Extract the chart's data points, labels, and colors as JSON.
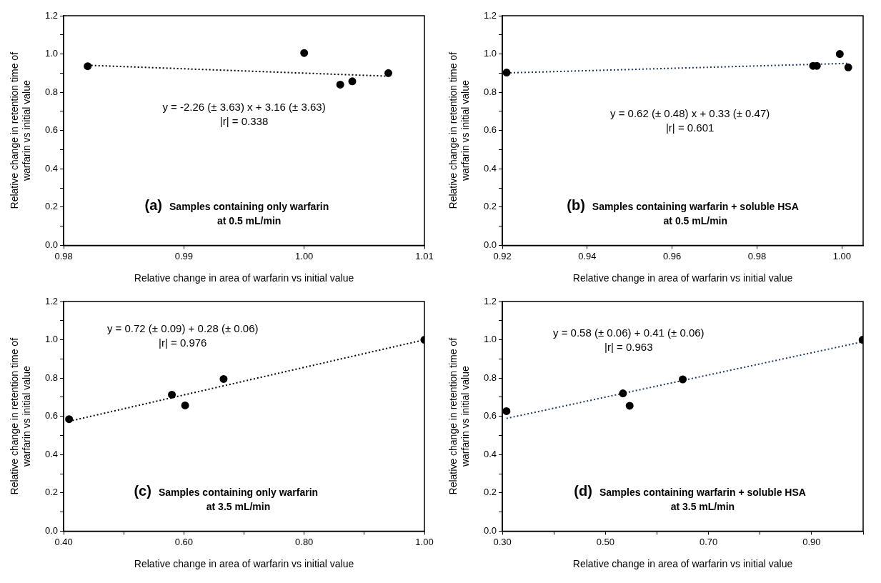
{
  "chart_data": [
    {
      "type": "scatter",
      "xlabel": "Relative change in area of warfarin vs initial value",
      "ylabel": "Relative change in retention time of warfarin vs initial value",
      "xlim": [
        0.98,
        1.01
      ],
      "xticks": [
        0.98,
        0.99,
        {
          "value": 1.0,
          "label": "1.00"
        },
        1.01
      ],
      "ylim": [
        0,
        1.2
      ],
      "yticks": [
        {
          "value": 0,
          "label": "0.0"
        },
        {
          "value": 0.1,
          "label": null
        },
        0.2,
        {
          "value": 0.3,
          "label": null
        },
        0.4,
        {
          "value": 0.5,
          "label": null
        },
        0.6,
        {
          "value": 0.7,
          "label": null
        },
        0.8,
        {
          "value": 0.9,
          "label": null
        },
        {
          "value": 1.0,
          "label": "1.0"
        },
        {
          "value": 1.1,
          "label": null
        },
        1.2
      ],
      "marker": "circle",
      "series": [
        {
          "color": "#000000",
          "x": [
            0.982,
            1.0,
            1.003,
            1.004,
            1.007
          ],
          "values": [
            0.936,
            1.005,
            0.84,
            0.857,
            0.9
          ]
        },
        {
          "type": "line",
          "color": "#000000",
          "line_style": "dotted",
          "marker": "none",
          "x": [
            0.982,
            1.007
          ],
          "values": [
            0.941,
            0.884
          ]
        }
      ],
      "annotations": [
        "y = -2.26 (± 3.63) x + 3.16 (± 3.63)",
        "|r| = 0.338",
        "(a)",
        "Samples containing only warfarin",
        "at 0.5 mL/min"
      ]
    },
    {
      "type": "scatter",
      "xlabel": "Relative change in area of warfarin vs initial value",
      "ylabel": "Relative change in retention time of warfarin vs initial value",
      "xlim": [
        0.92,
        1.005
      ],
      "xticks": [
        0.92,
        0.94,
        0.96,
        0.98,
        {
          "value": 1.0,
          "label": "1.00"
        }
      ],
      "ylim": [
        0,
        1.2
      ],
      "yticks": [
        {
          "value": 0,
          "label": "0.0"
        },
        {
          "value": 0.1,
          "label": null
        },
        0.2,
        {
          "value": 0.3,
          "label": null
        },
        0.4,
        {
          "value": 0.5,
          "label": null
        },
        0.6,
        {
          "value": 0.7,
          "label": null
        },
        0.8,
        {
          "value": 0.9,
          "label": null
        },
        {
          "value": 1.0,
          "label": "1.0"
        },
        {
          "value": 1.1,
          "label": null
        },
        1.2
      ],
      "marker": "circle",
      "series": [
        {
          "color": "#000000",
          "x": [
            0.921,
            0.9932,
            0.9941,
            0.9995,
            1.0015
          ],
          "values": [
            0.903,
            0.938,
            0.938,
            1.0,
            0.93
          ]
        },
        {
          "type": "line",
          "color": "#1f3864",
          "line_style": "dotted",
          "marker": "none",
          "x": [
            0.921,
            1.0015
          ],
          "values": [
            0.901,
            0.951
          ]
        }
      ],
      "annotations": [
        "y = 0.62 (± 0.48) x + 0.33 (± 0.47)",
        "|r| = 0.601",
        "(b)",
        "Samples containing warfarin + soluble HSA",
        "at 0.5 mL/min"
      ]
    },
    {
      "type": "scatter",
      "xlabel": "Relative change in area of warfarin vs initial value",
      "ylabel": "Relative change in retention time of warfarin vs initial value",
      "xlim": [
        0.4,
        1.0
      ],
      "xticks": [
        {
          "value": 0.4,
          "label": "0.40"
        },
        {
          "value": 0.5,
          "label": null
        },
        {
          "value": 0.6,
          "label": "0.60"
        },
        {
          "value": 0.7,
          "label": null
        },
        {
          "value": 0.8,
          "label": "0.80"
        },
        {
          "value": 0.9,
          "label": null
        },
        {
          "value": 1.0,
          "label": "1.00"
        }
      ],
      "ylim": [
        0,
        1.2
      ],
      "yticks": [
        {
          "value": 0,
          "label": "0.0"
        },
        {
          "value": 0.1,
          "label": null
        },
        0.2,
        {
          "value": 0.3,
          "label": null
        },
        0.4,
        {
          "value": 0.5,
          "label": null
        },
        0.6,
        {
          "value": 0.7,
          "label": null
        },
        0.8,
        {
          "value": 0.9,
          "label": null
        },
        {
          "value": 1.0,
          "label": "1.0"
        },
        {
          "value": 1.1,
          "label": null
        },
        1.2
      ],
      "marker": "circle",
      "series": [
        {
          "color": "#000000",
          "x": [
            0.409,
            0.58,
            0.602,
            0.666,
            1.0
          ],
          "values": [
            0.585,
            0.713,
            0.657,
            0.795,
            1.0
          ]
        },
        {
          "type": "line",
          "color": "#000000",
          "line_style": "dotted",
          "marker": "none",
          "x": [
            0.409,
            1.0
          ],
          "values": [
            0.574,
            1.0
          ]
        }
      ],
      "annotations": [
        "y = 0.72 (± 0.09) + 0.28 (± 0.06)",
        "|r| = 0.976",
        "(c)",
        "Samples containing only warfarin",
        "at 3.5 mL/min"
      ]
    },
    {
      "type": "scatter",
      "xlabel": "Relative change in area of warfarin vs initial value",
      "ylabel": "Relative change in retention time of warfarin vs initial value",
      "xlim": [
        0.3,
        1.0
      ],
      "xticks": [
        {
          "value": 0.3,
          "label": "0.30"
        },
        {
          "value": 0.4,
          "label": null
        },
        {
          "value": 0.5,
          "label": "0.50"
        },
        {
          "value": 0.6,
          "label": null
        },
        {
          "value": 0.7,
          "label": "0.70"
        },
        {
          "value": 0.8,
          "label": null
        },
        {
          "value": 0.9,
          "label": "0.90"
        },
        {
          "value": 1.0,
          "label": null
        }
      ],
      "ylim": [
        0,
        1.2
      ],
      "yticks": [
        {
          "value": 0,
          "label": "0.0"
        },
        {
          "value": 0.1,
          "label": null
        },
        0.2,
        {
          "value": 0.3,
          "label": null
        },
        0.4,
        {
          "value": 0.5,
          "label": null
        },
        0.6,
        {
          "value": 0.7,
          "label": null
        },
        0.8,
        {
          "value": 0.9,
          "label": null
        },
        {
          "value": 1.0,
          "label": "1.0"
        },
        {
          "value": 1.1,
          "label": null
        },
        1.2
      ],
      "marker": "circle",
      "series": [
        {
          "color": "#000000",
          "x": [
            0.308,
            0.534,
            0.547,
            0.65,
            0.999
          ],
          "values": [
            0.627,
            0.72,
            0.655,
            0.793,
            1.0
          ]
        },
        {
          "type": "line",
          "color": "#1f3864",
          "line_style": "dotted",
          "marker": "none",
          "x": [
            0.308,
            1.0
          ],
          "values": [
            0.589,
            0.99
          ]
        }
      ],
      "annotations": [
        "y = 0.58 (± 0.06) + 0.41 (± 0.06)",
        "|r| = 0.963",
        "(d)",
        "Samples containing warfarin + soluble HSA",
        "at 3.5 mL/min"
      ]
    }
  ]
}
